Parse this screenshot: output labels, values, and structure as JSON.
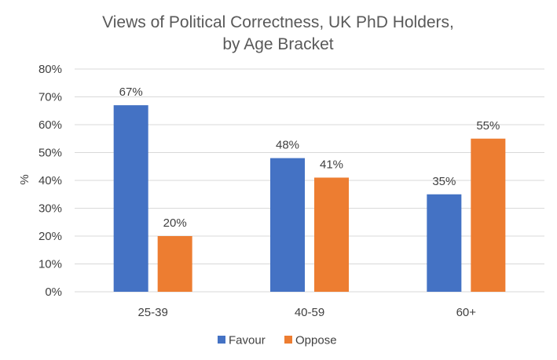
{
  "chart_data": {
    "type": "bar",
    "title_lines": [
      "Views of Political Correctness, UK PhD Holders,",
      "by Age Bracket"
    ],
    "ylabel": "%",
    "xlabel": "",
    "categories": [
      "25-39",
      "40-59",
      "60+"
    ],
    "series": [
      {
        "name": "Favour",
        "color": "#4472c4",
        "values": [
          67,
          48,
          35
        ],
        "labels": [
          "67%",
          "48%",
          "35%"
        ]
      },
      {
        "name": "Oppose",
        "color": "#ed7d31",
        "values": [
          20,
          41,
          55
        ],
        "labels": [
          "20%",
          "41%",
          "55%"
        ]
      }
    ],
    "ylim": [
      0,
      80
    ],
    "yticks": [
      0,
      10,
      20,
      30,
      40,
      50,
      60,
      70,
      80
    ],
    "ytick_labels": [
      "0%",
      "10%",
      "20%",
      "30%",
      "40%",
      "50%",
      "60%",
      "70%",
      "80%"
    ],
    "grid": true,
    "legend_position": "bottom"
  }
}
